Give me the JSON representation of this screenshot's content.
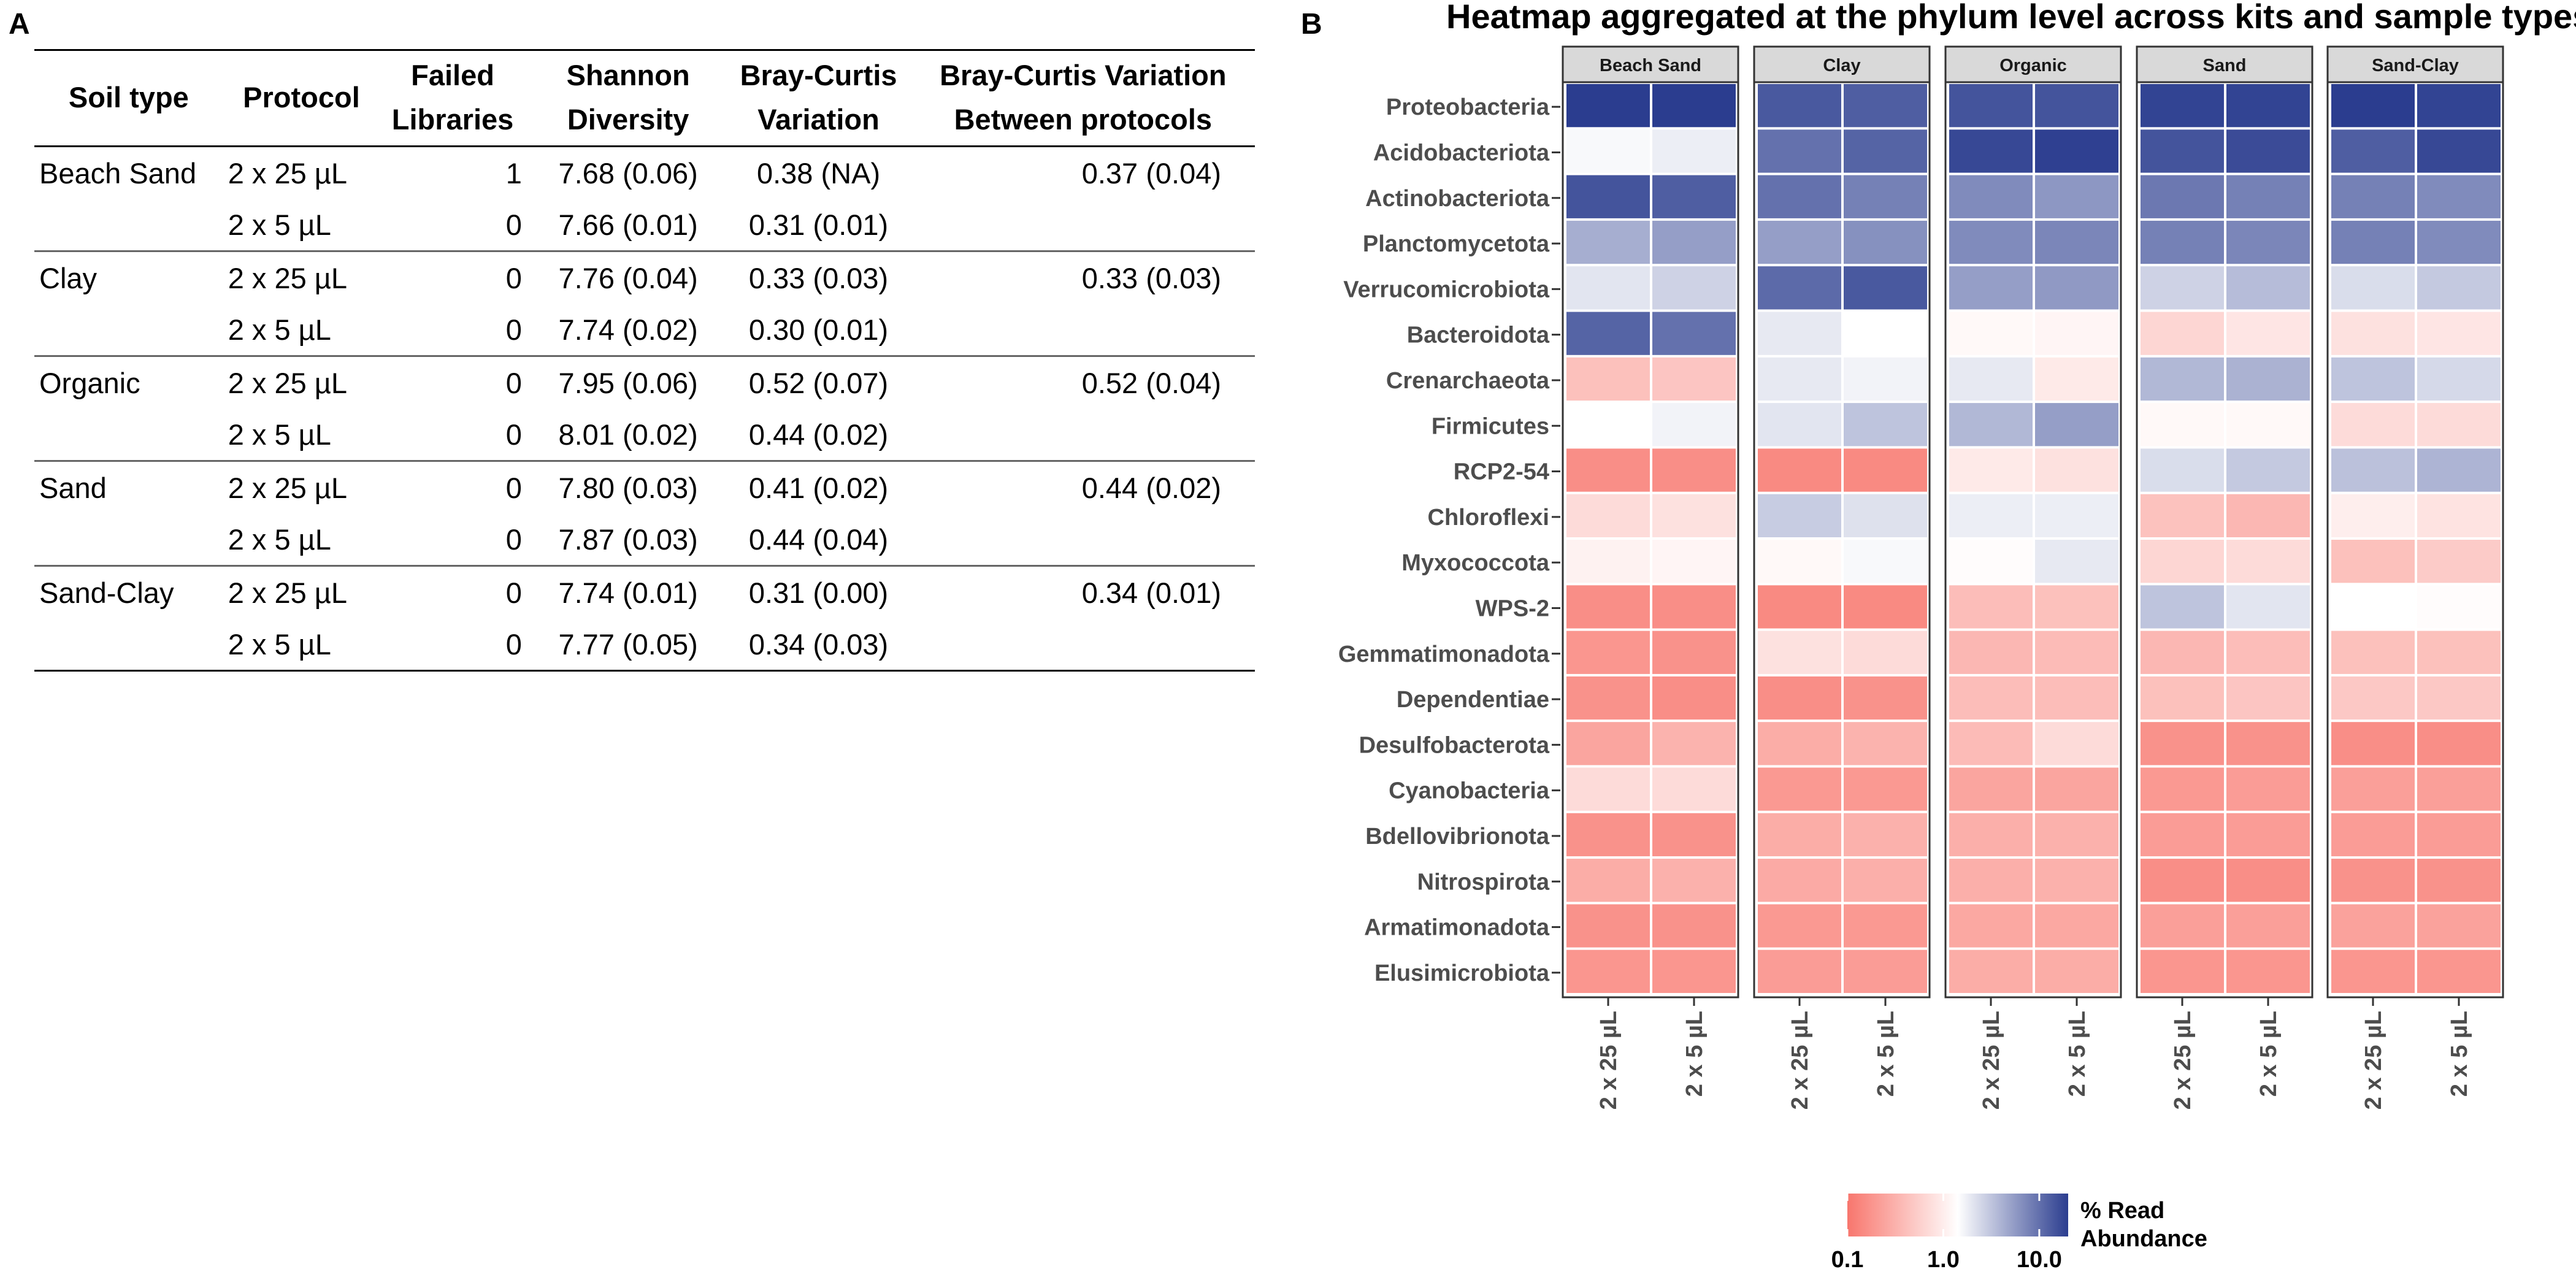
{
  "panel_a": {
    "letter": "A",
    "headers": [
      [
        "Soil type"
      ],
      [
        "Protocol"
      ],
      [
        "Failed",
        "Libraries"
      ],
      [
        "Shannon",
        "Diversity"
      ],
      [
        "Bray-Curtis",
        "Variation"
      ],
      [
        "Bray-Curtis Variation",
        "Between protocols"
      ]
    ],
    "groups": [
      {
        "soil": "Beach Sand",
        "between": "0.37 (0.04)",
        "rows": [
          {
            "protocol": "2 x 25 µL",
            "failed": "1",
            "shannon": "7.68 (0.06)",
            "bc": "0.38 (NA)"
          },
          {
            "protocol": "2 x 5 µL",
            "failed": "0",
            "shannon": "7.66 (0.01)",
            "bc": "0.31 (0.01)"
          }
        ]
      },
      {
        "soil": "Clay",
        "between": "0.33 (0.03)",
        "rows": [
          {
            "protocol": "2 x 25 µL",
            "failed": "0",
            "shannon": "7.76 (0.04)",
            "bc": "0.33 (0.03)"
          },
          {
            "protocol": "2 x 5 µL",
            "failed": "0",
            "shannon": "7.74 (0.02)",
            "bc": "0.30 (0.01)"
          }
        ]
      },
      {
        "soil": "Organic",
        "between": "0.52 (0.04)",
        "rows": [
          {
            "protocol": "2 x 25 µL",
            "failed": "0",
            "shannon": "7.95 (0.06)",
            "bc": "0.52 (0.07)"
          },
          {
            "protocol": "2 x 5 µL",
            "failed": "0",
            "shannon": "8.01 (0.02)",
            "bc": "0.44 (0.02)"
          }
        ]
      },
      {
        "soil": "Sand",
        "between": "0.44 (0.02)",
        "rows": [
          {
            "protocol": "2 x 25 µL",
            "failed": "0",
            "shannon": "7.80 (0.03)",
            "bc": "0.41 (0.02)"
          },
          {
            "protocol": "2 x 5 µL",
            "failed": "0",
            "shannon": "7.87 (0.03)",
            "bc": "0.44 (0.04)"
          }
        ]
      },
      {
        "soil": "Sand-Clay",
        "between": "0.34 (0.01)",
        "rows": [
          {
            "protocol": "2 x 25 µL",
            "failed": "0",
            "shannon": "7.74 (0.01)",
            "bc": "0.31 (0.00)"
          },
          {
            "protocol": "2 x 5 µL",
            "failed": "0",
            "shannon": "7.77 (0.05)",
            "bc": "0.34 (0.03)"
          }
        ]
      }
    ]
  },
  "panel_b": {
    "letter": "B"
  },
  "chart_data": {
    "type": "heatmap",
    "title": "Heatmap aggregated at the phylum level across kits and sample types",
    "facets": [
      "Beach Sand",
      "Clay",
      "Organic",
      "Sand",
      "Sand-Clay"
    ],
    "x": [
      "2 x 25 µL",
      "2 x 5 µL"
    ],
    "rows": [
      "Proteobacteria",
      "Acidobacteriota",
      "Actinobacteriota",
      "Planctomycetota",
      "Verrucomicrobiota",
      "Bacteroidota",
      "Crenarchaeota",
      "Firmicutes",
      "RCP2-54",
      "Chloroflexi",
      "Myxococcota",
      "WPS-2",
      "Gemmatimonadota",
      "Dependentiae",
      "Desulfobacterota",
      "Cyanobacteria",
      "Bdellovibrionota",
      "Nitrospirota",
      "Armatimonadota",
      "Elusimicrobiota"
    ],
    "scale": "log10",
    "color_low": "#f8766d",
    "color_mid": "#ffffff",
    "color_high": "#2b3d8f",
    "legend": {
      "title": [
        "% Read",
        "Abundance"
      ],
      "ticks": [
        {
          "value": 0.1,
          "label": "0.1"
        },
        {
          "value": 1.0,
          "label": "1.0"
        },
        {
          "value": 10.0,
          "label": "10.0"
        }
      ],
      "range": [
        0.1,
        20
      ],
      "placement": "bottom"
    },
    "values": {
      "Beach Sand": [
        [
          21,
          21
        ],
        [
          1.1,
          1.3
        ],
        [
          14,
          12
        ],
        [
          3.5,
          4.5
        ],
        [
          1.5,
          2.0
        ],
        [
          11,
          9
        ],
        [
          0.35,
          0.38
        ],
        [
          1.0,
          1.2
        ],
        [
          0.15,
          0.15
        ],
        [
          0.55,
          0.6
        ],
        [
          0.8,
          0.85
        ],
        [
          0.15,
          0.15
        ],
        [
          0.17,
          0.16
        ],
        [
          0.16,
          0.15
        ],
        [
          0.22,
          0.28
        ],
        [
          0.55,
          0.55
        ],
        [
          0.16,
          0.16
        ],
        [
          0.25,
          0.27
        ],
        [
          0.16,
          0.16
        ],
        [
          0.17,
          0.17
        ]
      ],
      "Clay": [
        [
          13,
          12
        ],
        [
          9,
          11
        ],
        [
          9,
          7
        ],
        [
          4.5,
          5.5
        ],
        [
          10,
          13
        ],
        [
          1.4,
          1.0
        ],
        [
          1.4,
          1.2
        ],
        [
          1.5,
          2.5
        ],
        [
          0.14,
          0.14
        ],
        [
          2.2,
          1.6
        ],
        [
          0.9,
          1.1
        ],
        [
          0.14,
          0.14
        ],
        [
          0.6,
          0.55
        ],
        [
          0.15,
          0.16
        ],
        [
          0.25,
          0.28
        ],
        [
          0.18,
          0.18
        ],
        [
          0.25,
          0.27
        ],
        [
          0.24,
          0.26
        ],
        [
          0.18,
          0.18
        ],
        [
          0.19,
          0.19
        ]
      ],
      "Organic": [
        [
          14,
          14
        ],
        [
          17,
          19
        ],
        [
          6,
          5
        ],
        [
          6,
          6.5
        ],
        [
          4.5,
          4.8
        ],
        [
          0.9,
          0.85
        ],
        [
          1.4,
          0.7
        ],
        [
          3,
          4.5
        ],
        [
          0.7,
          0.6
        ],
        [
          1.3,
          1.3
        ],
        [
          0.95,
          1.4
        ],
        [
          0.33,
          0.35
        ],
        [
          0.3,
          0.32
        ],
        [
          0.33,
          0.33
        ],
        [
          0.32,
          0.55
        ],
        [
          0.22,
          0.22
        ],
        [
          0.26,
          0.27
        ],
        [
          0.26,
          0.27
        ],
        [
          0.23,
          0.23
        ],
        [
          0.25,
          0.25
        ]
      ],
      "Sand": [
        [
          18,
          18
        ],
        [
          14,
          16
        ],
        [
          8,
          7
        ],
        [
          7,
          6.5
        ],
        [
          2.0,
          2.8
        ],
        [
          0.5,
          0.65
        ],
        [
          3,
          3.3
        ],
        [
          0.9,
          0.9
        ],
        [
          1.7,
          2.3
        ],
        [
          0.36,
          0.3
        ],
        [
          0.5,
          0.55
        ],
        [
          2.5,
          1.5
        ],
        [
          0.3,
          0.33
        ],
        [
          0.35,
          0.38
        ],
        [
          0.16,
          0.16
        ],
        [
          0.18,
          0.19
        ],
        [
          0.19,
          0.19
        ],
        [
          0.15,
          0.15
        ],
        [
          0.2,
          0.2
        ],
        [
          0.17,
          0.17
        ]
      ],
      "Sand-Clay": [
        [
          20,
          18
        ],
        [
          12,
          17
        ],
        [
          7,
          6
        ],
        [
          7,
          6
        ],
        [
          1.7,
          2.3
        ],
        [
          0.6,
          0.65
        ],
        [
          2.5,
          1.8
        ],
        [
          0.55,
          0.55
        ],
        [
          2.6,
          3.2
        ],
        [
          0.75,
          0.62
        ],
        [
          0.35,
          0.42
        ],
        [
          1.0,
          0.95
        ],
        [
          0.35,
          0.35
        ],
        [
          0.4,
          0.4
        ],
        [
          0.15,
          0.15
        ],
        [
          0.2,
          0.2
        ],
        [
          0.19,
          0.19
        ],
        [
          0.16,
          0.16
        ],
        [
          0.21,
          0.21
        ],
        [
          0.17,
          0.17
        ]
      ]
    }
  }
}
